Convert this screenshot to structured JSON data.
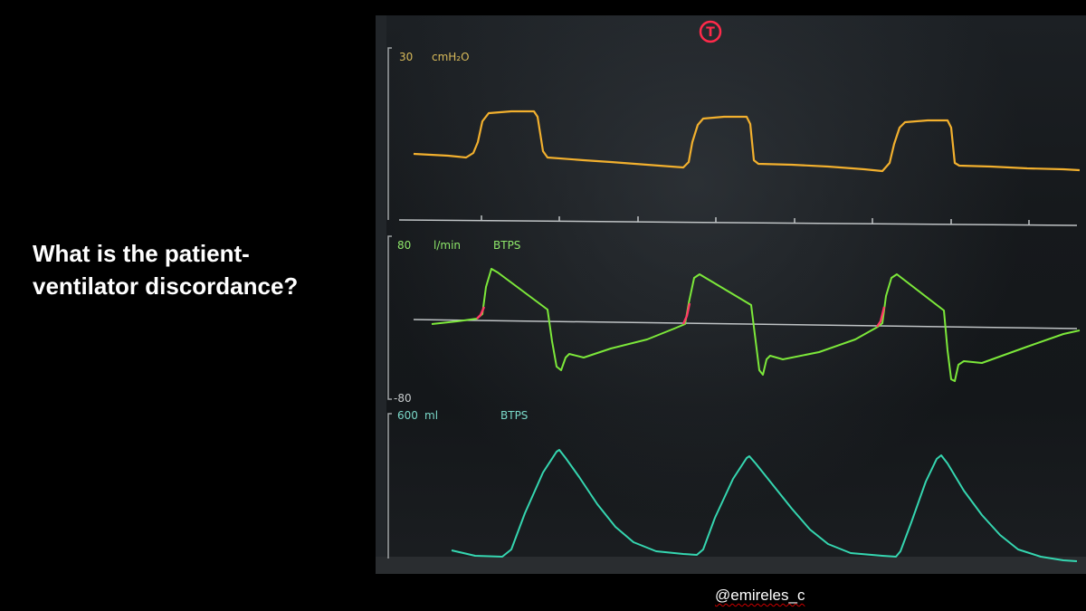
{
  "question": {
    "line1": "What is the patient-",
    "line2": "ventilator discordance?"
  },
  "handle": "@emireles_c",
  "monitor": {
    "alarm_symbol": "T",
    "pressure": {
      "scale": "30",
      "unit": "cmH₂O"
    },
    "flow": {
      "scale_top": "80",
      "unit": "l/min",
      "condition": "BTPS",
      "scale_bottom": "-80"
    },
    "volume": {
      "scale": "600",
      "unit": "ml",
      "condition": "BTPS"
    }
  },
  "colors": {
    "pressure": "#f2b02e",
    "flow": "#7ce83a",
    "trigger": "#ff3a66",
    "volume": "#35d6b0",
    "alarm": "#ff2a4a",
    "label": "#d8ba5a",
    "flow_label": "#8ee86a",
    "volume_label": "#7ad8c8"
  }
}
